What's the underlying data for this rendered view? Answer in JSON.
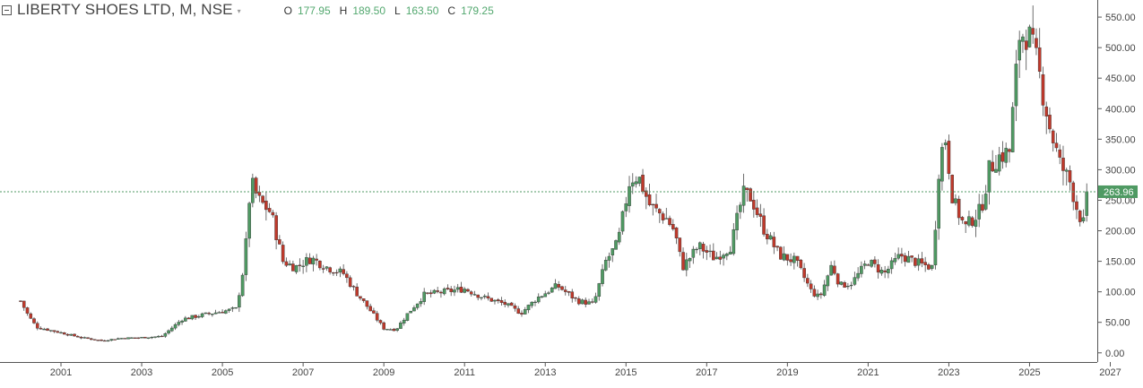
{
  "legend": {
    "symbol": "LIBERTY SHOES LTD, M, NSE",
    "open_label": "O",
    "open": "177.95",
    "high_label": "H",
    "high": "189.50",
    "low_label": "L",
    "low": "163.50",
    "close_label": "C",
    "close": "179.25"
  },
  "colors": {
    "up": "#4f9a63",
    "down": "#c0392b",
    "wick": "#4a4a4a",
    "last_price": "#4f9a63"
  },
  "chart_data": {
    "type": "candlestick",
    "interval": "monthly",
    "x_ticks": [
      "2001",
      "2003",
      "2005",
      "2007",
      "2009",
      "2011",
      "2013",
      "2015",
      "2017",
      "2019",
      "2021",
      "2023",
      "2025",
      "2027"
    ],
    "y_ticks": [
      "0.00",
      "50.00",
      "100.00",
      "150.00",
      "200.00",
      "250.00",
      "300.00",
      "350.00",
      "400.00",
      "450.00",
      "500.00",
      "550.00"
    ],
    "ylim": [
      -15,
      578
    ],
    "xlim": [
      2000.0,
      2027.5
    ],
    "last_price": 263.96,
    "last_price_label": "263.96",
    "axis_position": "right",
    "key_points": [
      [
        2000.0,
        85
      ],
      [
        2000.2,
        60
      ],
      [
        2000.4,
        42
      ],
      [
        2001.0,
        33
      ],
      [
        2001.5,
        25
      ],
      [
        2002.0,
        20
      ],
      [
        2002.5,
        24
      ],
      [
        2003.0,
        25
      ],
      [
        2003.5,
        27
      ],
      [
        2004.0,
        55
      ],
      [
        2004.5,
        62
      ],
      [
        2005.0,
        68
      ],
      [
        2005.35,
        72
      ],
      [
        2005.55,
        150
      ],
      [
        2005.7,
        280
      ],
      [
        2005.9,
        250
      ],
      [
        2006.2,
        230
      ],
      [
        2006.5,
        150
      ],
      [
        2006.8,
        140
      ],
      [
        2007.2,
        155
      ],
      [
        2007.6,
        140
      ],
      [
        2008.0,
        130
      ],
      [
        2008.3,
        100
      ],
      [
        2008.6,
        75
      ],
      [
        2009.0,
        40
      ],
      [
        2009.3,
        38
      ],
      [
        2009.6,
        65
      ],
      [
        2010.0,
        95
      ],
      [
        2010.5,
        100
      ],
      [
        2011.0,
        105
      ],
      [
        2011.5,
        90
      ],
      [
        2012.0,
        80
      ],
      [
        2012.4,
        65
      ],
      [
        2012.8,
        90
      ],
      [
        2013.3,
        110
      ],
      [
        2013.8,
        85
      ],
      [
        2014.2,
        80
      ],
      [
        2014.5,
        150
      ],
      [
        2014.8,
        180
      ],
      [
        2015.1,
        285
      ],
      [
        2015.3,
        290
      ],
      [
        2015.6,
        240
      ],
      [
        2016.0,
        220
      ],
      [
        2016.2,
        200
      ],
      [
        2016.4,
        140
      ],
      [
        2016.8,
        175
      ],
      [
        2017.2,
        155
      ],
      [
        2017.6,
        175
      ],
      [
        2017.9,
        260
      ],
      [
        2018.1,
        255
      ],
      [
        2018.4,
        205
      ],
      [
        2018.8,
        160
      ],
      [
        2019.2,
        150
      ],
      [
        2019.6,
        100
      ],
      [
        2019.8,
        90
      ],
      [
        2020.1,
        145
      ],
      [
        2020.3,
        110
      ],
      [
        2020.6,
        115
      ],
      [
        2021.0,
        150
      ],
      [
        2021.4,
        130
      ],
      [
        2021.8,
        160
      ],
      [
        2022.3,
        145
      ],
      [
        2022.6,
        140
      ],
      [
        2022.75,
        300
      ],
      [
        2022.9,
        360
      ],
      [
        2023.1,
        250
      ],
      [
        2023.4,
        205
      ],
      [
        2023.8,
        235
      ],
      [
        2024.0,
        300
      ],
      [
        2024.2,
        320
      ],
      [
        2024.5,
        330
      ],
      [
        2024.75,
        520
      ],
      [
        2024.95,
        525
      ],
      [
        2025.2,
        470
      ],
      [
        2025.5,
        370
      ],
      [
        2025.75,
        310
      ],
      [
        2026.0,
        280
      ],
      [
        2026.2,
        230
      ],
      [
        2026.35,
        210
      ],
      [
        2026.42,
        263.96
      ]
    ]
  }
}
